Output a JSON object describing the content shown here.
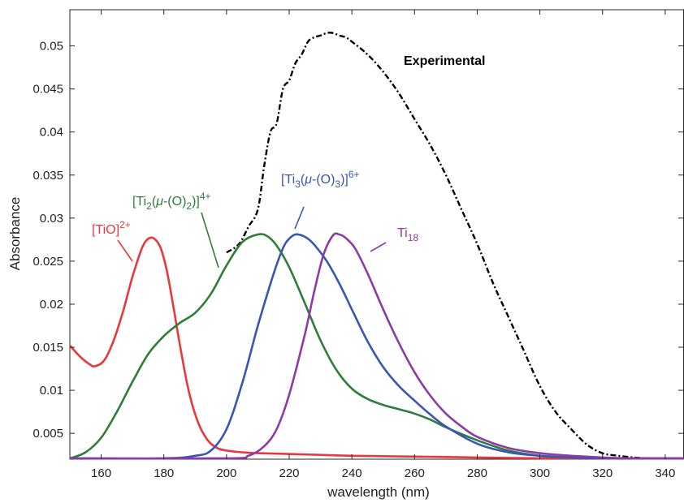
{
  "chart_data": {
    "type": "line",
    "xlabel": "wavelength (nm)",
    "ylabel": "Absorbance",
    "xlim": [
      150,
      346
    ],
    "ylim": [
      0.002,
      0.0542
    ],
    "x_ticks": [
      "160",
      "180",
      "200",
      "220",
      "240",
      "260",
      "280",
      "300",
      "320",
      "340"
    ],
    "y_ticks": [
      "0.005",
      "0.01",
      "0.015",
      "0.02",
      "0.025",
      "0.03",
      "0.035",
      "0.04",
      "0.045",
      "0.05"
    ],
    "grid": false,
    "series": [
      {
        "name": "Experimental",
        "color": "#000000",
        "style": "dash-dot",
        "x": [
          200,
          204,
          207,
          210,
          212,
          214,
          216,
          218,
          220,
          222,
          224,
          226,
          228,
          230,
          232,
          234,
          236,
          238,
          240,
          245,
          250,
          255,
          260,
          265,
          270,
          275,
          280,
          285,
          290,
          295,
          300,
          305,
          310,
          315,
          320,
          325,
          330,
          335,
          340,
          346
        ],
        "y": [
          0.026,
          0.027,
          0.029,
          0.031,
          0.036,
          0.04,
          0.041,
          0.045,
          0.046,
          0.048,
          0.049,
          0.0505,
          0.051,
          0.0512,
          0.0515,
          0.0515,
          0.0512,
          0.051,
          0.0505,
          0.049,
          0.047,
          0.0445,
          0.0415,
          0.0385,
          0.035,
          0.031,
          0.027,
          0.0225,
          0.0185,
          0.0145,
          0.0105,
          0.0075,
          0.0055,
          0.0037,
          0.0027,
          0.0024,
          0.0022,
          0.0021,
          0.0021,
          0.0021
        ]
      },
      {
        "name": "[TiO]2+",
        "color": "#e8383d",
        "x": [
          150,
          153,
          156,
          158,
          161,
          164,
          167,
          170,
          173,
          175,
          177,
          179,
          181,
          183,
          185,
          188,
          191,
          194,
          197,
          200,
          205,
          210,
          220,
          240,
          260,
          280,
          300,
          320,
          346
        ],
        "y": [
          0.0152,
          0.014,
          0.0131,
          0.0128,
          0.0135,
          0.0158,
          0.0192,
          0.0232,
          0.0265,
          0.0276,
          0.0276,
          0.0265,
          0.0238,
          0.0198,
          0.0155,
          0.0098,
          0.0062,
          0.0042,
          0.0033,
          0.003,
          0.0028,
          0.0027,
          0.0026,
          0.0024,
          0.0023,
          0.0022,
          0.0021,
          0.0021,
          0.0021
        ]
      },
      {
        "name": "[Ti2(μ-(O)2)]4+",
        "color": "#2e7d3a",
        "x": [
          150,
          155,
          160,
          165,
          170,
          175,
          180,
          185,
          190,
          195,
          200,
          205,
          210,
          213,
          216,
          220,
          225,
          230,
          235,
          240,
          245,
          250,
          255,
          260,
          265,
          270,
          280,
          290,
          300,
          310,
          320,
          330,
          346
        ],
        "y": [
          0.0021,
          0.0028,
          0.0045,
          0.0075,
          0.011,
          0.0142,
          0.0163,
          0.0178,
          0.019,
          0.0212,
          0.0245,
          0.0272,
          0.0281,
          0.0279,
          0.0268,
          0.0243,
          0.0201,
          0.0158,
          0.0124,
          0.0102,
          0.009,
          0.0083,
          0.0078,
          0.0073,
          0.0066,
          0.0057,
          0.0042,
          0.003,
          0.0024,
          0.0022,
          0.0021,
          0.0021,
          0.0021
        ]
      },
      {
        "name": "[Ti3(μ-(O)3)]6+",
        "color": "#3a55b4",
        "x": [
          150,
          180,
          190,
          195,
          200,
          205,
          210,
          215,
          218,
          220,
          222,
          224,
          226,
          228,
          232,
          236,
          240,
          245,
          250,
          255,
          260,
          265,
          270,
          280,
          290,
          300,
          310,
          320,
          330,
          346
        ],
        "y": [
          0.0021,
          0.0021,
          0.0024,
          0.003,
          0.0055,
          0.0108,
          0.0175,
          0.0235,
          0.0265,
          0.0276,
          0.0281,
          0.028,
          0.0276,
          0.0269,
          0.025,
          0.0224,
          0.0194,
          0.0157,
          0.0127,
          0.0105,
          0.0088,
          0.0072,
          0.0058,
          0.0038,
          0.0028,
          0.0024,
          0.0022,
          0.0021,
          0.0021,
          0.0021
        ]
      },
      {
        "name": "Ti18",
        "color": "#8e3aa6",
        "x": [
          150,
          200,
          207,
          212,
          216,
          220,
          225,
          228,
          231,
          234,
          236,
          238,
          241,
          245,
          250,
          255,
          260,
          265,
          270,
          275,
          280,
          290,
          300,
          310,
          320,
          330,
          346
        ],
        "y": [
          0.0021,
          0.0021,
          0.0024,
          0.0035,
          0.0055,
          0.0095,
          0.0165,
          0.0215,
          0.0258,
          0.028,
          0.0281,
          0.0277,
          0.0265,
          0.0236,
          0.0194,
          0.0155,
          0.0121,
          0.0094,
          0.0073,
          0.0058,
          0.0046,
          0.0033,
          0.0027,
          0.0024,
          0.0022,
          0.0021,
          0.0021
        ]
      }
    ],
    "annotations": [
      {
        "series": 0,
        "text": "Experimental",
        "color": "#000000"
      },
      {
        "series": 1,
        "base": "[TiO]",
        "sup": "2+",
        "color": "#e8383d"
      },
      {
        "series": 2,
        "base": "[Ti",
        "sub1": "2",
        "mid1": "(",
        "mu": "μ",
        "mid2": "-(O)",
        "sub2": "2",
        "close": ")]",
        "sup": "4+",
        "color": "#2e7d3a"
      },
      {
        "series": 3,
        "base": "[Ti",
        "sub1": "3",
        "mid1": "(",
        "mu": "μ",
        "mid2": "-(O)",
        "sub2": "3",
        "close": ")]",
        "sup": "6+",
        "color": "#3a55b4"
      },
      {
        "series": 4,
        "base": "Ti",
        "sub1": "18",
        "color": "#8e3aa6"
      }
    ]
  }
}
